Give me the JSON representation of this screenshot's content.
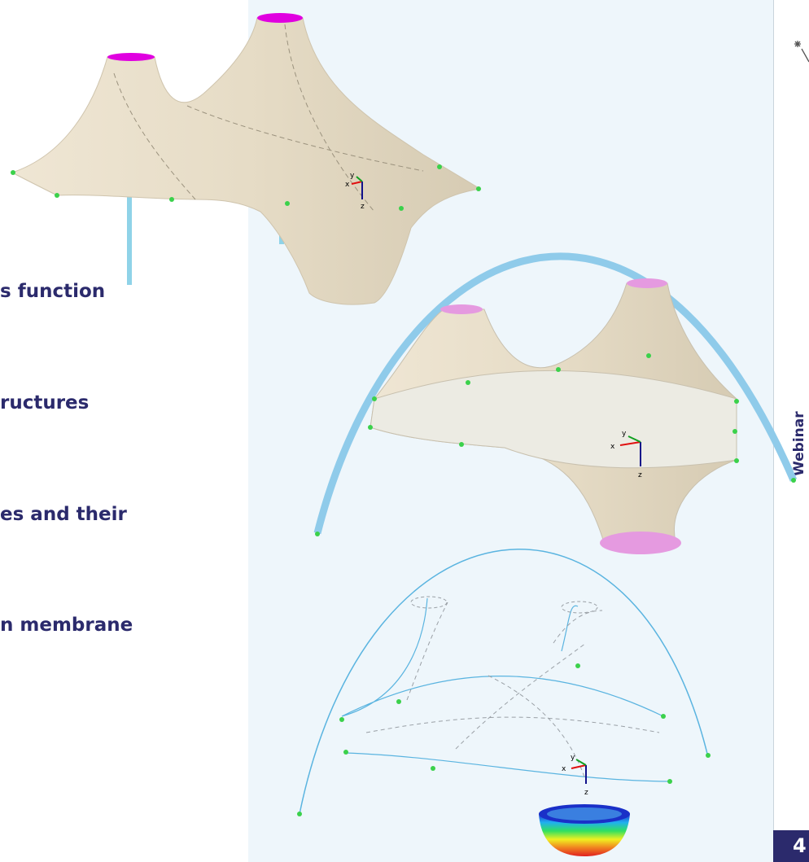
{
  "slide": {
    "bullets": [
      "s function",
      "ructures",
      "es and their",
      "n membrane"
    ],
    "side_label": "Webinar",
    "page_number": "4",
    "axis_labels": [
      "x",
      "y",
      "z"
    ]
  }
}
